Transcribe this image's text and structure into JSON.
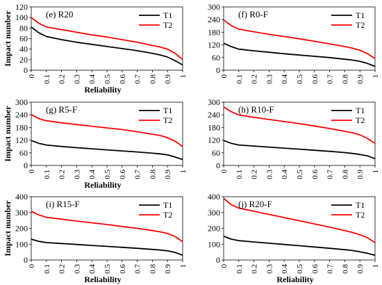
{
  "chart_data": [
    {
      "type": "line",
      "title": "(e) R20",
      "xlabel": "Reliability",
      "ylabel": "Impact number",
      "xlim": [
        0,
        1
      ],
      "ylim": [
        0,
        120
      ],
      "xticks": [
        "0",
        "0.1",
        "0.2",
        "0.3",
        "0.4",
        "0.5",
        "0.6",
        "0.7",
        "0.8",
        "0.9",
        "1"
      ],
      "yticks": [
        "0",
        "20",
        "40",
        "60",
        "80",
        "100",
        "120"
      ],
      "x": [
        0,
        0.05,
        0.1,
        0.2,
        0.3,
        0.4,
        0.5,
        0.6,
        0.7,
        0.8,
        0.85,
        0.9,
        0.95,
        1
      ],
      "series": [
        {
          "name": "T1",
          "color": "#000000",
          "values": [
            82,
            71,
            64,
            58,
            53,
            49,
            45,
            41,
            37,
            32,
            29,
            25,
            18,
            10
          ]
        },
        {
          "name": "T2",
          "color": "#ff0000",
          "values": [
            100,
            89,
            82,
            77,
            72,
            67,
            63,
            58,
            53,
            47,
            44,
            40,
            32,
            20
          ]
        }
      ],
      "legend": "top-right"
    },
    {
      "type": "line",
      "title": "(f) R0-F",
      "xlabel": "",
      "ylabel": "",
      "xlim": [
        0,
        1
      ],
      "ylim": [
        0,
        300
      ],
      "xticks": [
        "0",
        "0.1",
        "0.2",
        "0.3",
        "0.4",
        "0.5",
        "0.6",
        "0.7",
        "0.8",
        "0.9",
        "1"
      ],
      "yticks": [
        "0",
        "60",
        "120",
        "180",
        "240",
        "300"
      ],
      "x": [
        0,
        0.05,
        0.1,
        0.2,
        0.3,
        0.4,
        0.5,
        0.6,
        0.7,
        0.8,
        0.85,
        0.9,
        0.95,
        1
      ],
      "series": [
        {
          "name": "T1",
          "color": "#000000",
          "values": [
            128,
            112,
            100,
            92,
            85,
            78,
            72,
            66,
            60,
            52,
            48,
            42,
            32,
            18
          ]
        },
        {
          "name": "T2",
          "color": "#ff0000",
          "values": [
            238,
            212,
            195,
            182,
            170,
            160,
            149,
            137,
            125,
            112,
            105,
            95,
            78,
            55
          ]
        }
      ],
      "legend": "top-right"
    },
    {
      "type": "line",
      "title": "(g) R5-F",
      "xlabel": "Reliability",
      "ylabel": "Impact number",
      "xlim": [
        0,
        1
      ],
      "ylim": [
        0,
        300
      ],
      "xticks": [
        "0",
        "0.1",
        "0.2",
        "0.3",
        "0.4",
        "0.5",
        "0.6",
        "0.7",
        "0.8",
        "0.9",
        "1"
      ],
      "yticks": [
        "0",
        "60",
        "120",
        "180",
        "240",
        "300"
      ],
      "x": [
        0,
        0.05,
        0.1,
        0.2,
        0.3,
        0.4,
        0.5,
        0.6,
        0.7,
        0.8,
        0.85,
        0.9,
        0.95,
        1
      ],
      "series": [
        {
          "name": "T1",
          "color": "#000000",
          "values": [
            118,
            105,
            97,
            90,
            84,
            79,
            74,
            69,
            64,
            58,
            55,
            50,
            40,
            28
          ]
        },
        {
          "name": "T2",
          "color": "#ff0000",
          "values": [
            242,
            222,
            212,
            202,
            194,
            186,
            178,
            170,
            160,
            148,
            142,
            132,
            115,
            90
          ]
        }
      ],
      "legend": "top-right"
    },
    {
      "type": "line",
      "title": "(h) R10-F",
      "xlabel": "",
      "ylabel": "",
      "xlim": [
        0,
        1
      ],
      "ylim": [
        0,
        300
      ],
      "xticks": [
        "0",
        "0.1",
        "0.2",
        "0.3",
        "0.4",
        "0.5",
        "0.6",
        "0.7",
        "0.8",
        "0.9",
        "1"
      ],
      "yticks": [
        "0",
        "60",
        "120",
        "180",
        "240",
        "300"
      ],
      "x": [
        0,
        0.05,
        0.1,
        0.2,
        0.3,
        0.4,
        0.5,
        0.6,
        0.7,
        0.8,
        0.85,
        0.9,
        0.95,
        1
      ],
      "series": [
        {
          "name": "T1",
          "color": "#000000",
          "values": [
            118,
            105,
            97,
            92,
            87,
            82,
            77,
            72,
            67,
            61,
            57,
            52,
            45,
            32
          ]
        },
        {
          "name": "T2",
          "color": "#ff0000",
          "values": [
            278,
            255,
            240,
            228,
            218,
            208,
            198,
            187,
            175,
            162,
            155,
            145,
            128,
            105
          ]
        }
      ],
      "legend": "top-right"
    },
    {
      "type": "line",
      "title": "(i) R15-F",
      "xlabel": "Reliability",
      "ylabel": "Impact number",
      "xlim": [
        0,
        1
      ],
      "ylim": [
        0,
        400
      ],
      "xticks": [
        "0",
        "0.1",
        "0.2",
        "0.3",
        "0.4",
        "0.5",
        "0.6",
        "0.7",
        "0.8",
        "0.9",
        "1"
      ],
      "yticks": [
        "0",
        "100",
        "200",
        "300",
        "400"
      ],
      "x": [
        0,
        0.05,
        0.1,
        0.2,
        0.3,
        0.4,
        0.5,
        0.6,
        0.7,
        0.8,
        0.85,
        0.9,
        0.95,
        1
      ],
      "series": [
        {
          "name": "T1",
          "color": "#000000",
          "values": [
            132,
            118,
            110,
            104,
            98,
            92,
            86,
            80,
            74,
            67,
            63,
            58,
            48,
            30
          ]
        },
        {
          "name": "T2",
          "color": "#ff0000",
          "values": [
            308,
            285,
            270,
            258,
            246,
            235,
            224,
            212,
            200,
            186,
            178,
            168,
            148,
            115
          ]
        }
      ],
      "legend": "top-right"
    },
    {
      "type": "line",
      "title": "(j) R20-F",
      "xlabel": "Reliability",
      "ylabel": "",
      "xlim": [
        0,
        1
      ],
      "ylim": [
        0,
        400
      ],
      "xticks": [
        "0",
        "0.1",
        "0.2",
        "0.3",
        "0.4",
        "0.5",
        "0.6",
        "0.7",
        "0.8",
        "0.9",
        "1"
      ],
      "yticks": [
        "0",
        "100",
        "200",
        "300",
        "400"
      ],
      "x": [
        0,
        0.05,
        0.1,
        0.2,
        0.3,
        0.4,
        0.5,
        0.6,
        0.7,
        0.8,
        0.85,
        0.9,
        0.95,
        1
      ],
      "series": [
        {
          "name": "T1",
          "color": "#000000",
          "values": [
            150,
            132,
            122,
            114,
            106,
            98,
            90,
            82,
            74,
            65,
            60,
            52,
            42,
            30
          ]
        },
        {
          "name": "T2",
          "color": "#ff0000",
          "values": [
            390,
            350,
            328,
            308,
            288,
            268,
            248,
            228,
            208,
            186,
            174,
            160,
            140,
            110
          ]
        }
      ],
      "legend": "top-right"
    }
  ]
}
